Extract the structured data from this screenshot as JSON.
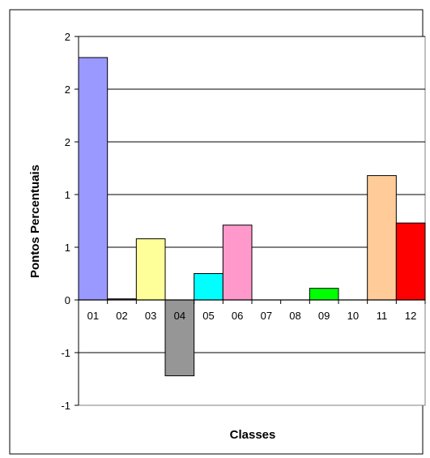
{
  "chart_data": {
    "type": "bar",
    "title": "",
    "xlabel": "Classes",
    "ylabel": "Pontos Percentuais",
    "categories": [
      "01",
      "02",
      "03",
      "04",
      "05",
      "06",
      "07",
      "08",
      "09",
      "10",
      "11",
      "12"
    ],
    "values": [
      2.3,
      0.01,
      0.58,
      -0.72,
      0.25,
      0.71,
      0,
      0,
      0.11,
      0,
      1.18,
      0.73
    ],
    "colors": [
      "#9999FF",
      "#993366",
      "#FFFF99",
      "#969696",
      "#00FFFF",
      "#FF99CC",
      "#000080",
      "#FF00FF",
      "#00FF00",
      "#00FFFF",
      "#FFCC99",
      "#FF0000"
    ],
    "ylim": [
      -1,
      2.5
    ],
    "y_ticks": [
      -1,
      -0.5,
      0,
      0.5,
      1,
      1.5,
      2,
      2.5
    ],
    "y_tick_labels": [
      "-1",
      "-1",
      "0",
      "1",
      "1",
      "2",
      "2",
      "2"
    ],
    "grid": true,
    "legend": "none"
  }
}
